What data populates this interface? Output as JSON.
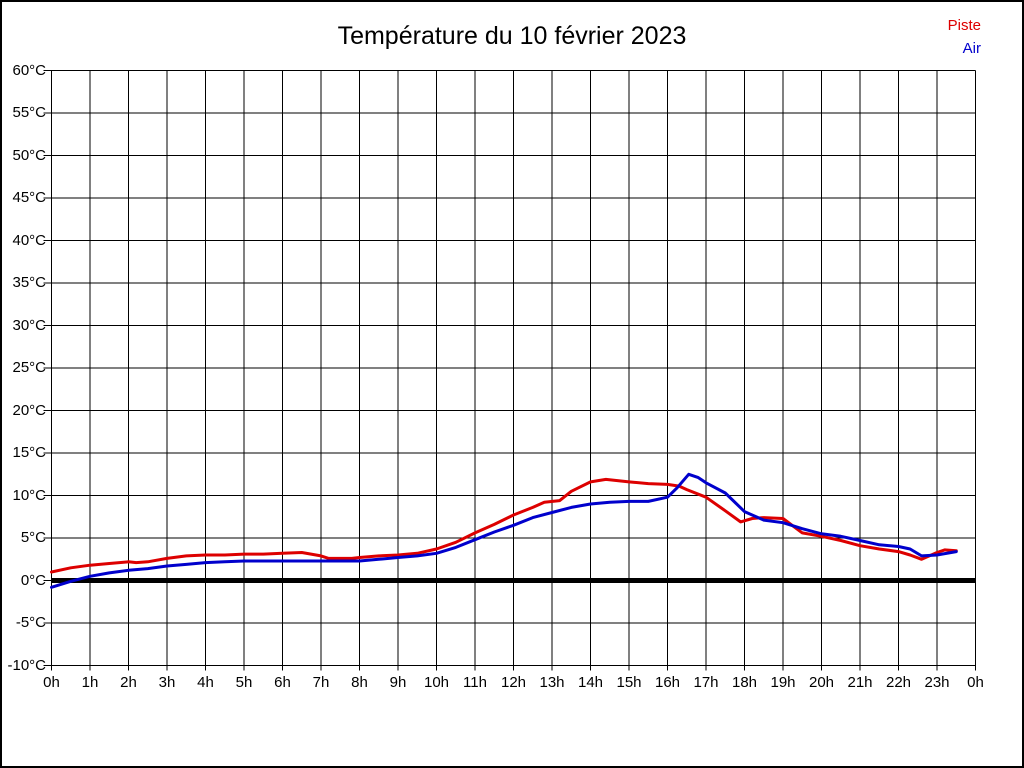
{
  "title": "Température du 10 février 2023",
  "legend": [
    {
      "label": "Piste",
      "color": "#dd0000"
    },
    {
      "label": "Air",
      "color": "#0000cc"
    }
  ],
  "chart_data": {
    "type": "line",
    "title": "Température du 10 février 2023",
    "xlabel": "",
    "ylabel": "",
    "xlim": [
      0,
      24
    ],
    "ylim": [
      -10,
      60
    ],
    "grid": true,
    "background": "#ffffff",
    "grid_color": "#000000",
    "legend_position": "top-right",
    "zero_line": {
      "value": 0,
      "color": "#000000",
      "width": 5
    },
    "x_axis": {
      "values": [
        0,
        1,
        2,
        3,
        4,
        5,
        6,
        7,
        8,
        9,
        10,
        11,
        12,
        13,
        14,
        15,
        16,
        17,
        18,
        19,
        20,
        21,
        22,
        23,
        24
      ],
      "labels": [
        "0h",
        "1h",
        "2h",
        "3h",
        "4h",
        "5h",
        "6h",
        "7h",
        "8h",
        "9h",
        "10h",
        "11h",
        "12h",
        "13h",
        "14h",
        "15h",
        "16h",
        "17h",
        "18h",
        "19h",
        "20h",
        "21h",
        "22h",
        "23h",
        "0h"
      ]
    },
    "y_axis": {
      "values": [
        60,
        55,
        50,
        45,
        40,
        35,
        30,
        25,
        20,
        15,
        10,
        5,
        0,
        -5,
        -10
      ],
      "labels": [
        "60°C",
        "55°C",
        "50°C",
        "45°C",
        "40°C",
        "35°C",
        "30°C",
        "25°C",
        "20°C",
        "15°C",
        "10°C",
        "5°C",
        "0°C",
        "-5°C",
        "-10°C"
      ]
    },
    "series": [
      {
        "name": "Piste",
        "color": "#dd0000",
        "points": [
          [
            0,
            1.0
          ],
          [
            0.5,
            1.5
          ],
          [
            1,
            1.8
          ],
          [
            1.5,
            2.0
          ],
          [
            2,
            2.2
          ],
          [
            2.2,
            2.1
          ],
          [
            2.5,
            2.2
          ],
          [
            3,
            2.6
          ],
          [
            3.5,
            2.9
          ],
          [
            4,
            3.0
          ],
          [
            4.5,
            3.0
          ],
          [
            5,
            3.1
          ],
          [
            5.5,
            3.1
          ],
          [
            6,
            3.2
          ],
          [
            6.5,
            3.3
          ],
          [
            7,
            2.9
          ],
          [
            7.2,
            2.6
          ],
          [
            7.8,
            2.6
          ],
          [
            8,
            2.7
          ],
          [
            8.5,
            2.9
          ],
          [
            9,
            3.0
          ],
          [
            9.5,
            3.2
          ],
          [
            10,
            3.7
          ],
          [
            10.5,
            4.5
          ],
          [
            11,
            5.6
          ],
          [
            11.5,
            6.6
          ],
          [
            12,
            7.7
          ],
          [
            12.5,
            8.6
          ],
          [
            12.8,
            9.2
          ],
          [
            13.2,
            9.4
          ],
          [
            13.5,
            10.5
          ],
          [
            14,
            11.6
          ],
          [
            14.4,
            11.9
          ],
          [
            15,
            11.6
          ],
          [
            15.5,
            11.4
          ],
          [
            16,
            11.3
          ],
          [
            16.3,
            11.1
          ],
          [
            16.5,
            10.7
          ],
          [
            17,
            9.8
          ],
          [
            17.5,
            8.2
          ],
          [
            17.9,
            6.9
          ],
          [
            18.2,
            7.3
          ],
          [
            18.5,
            7.4
          ],
          [
            19,
            7.3
          ],
          [
            19.5,
            5.6
          ],
          [
            20,
            5.2
          ],
          [
            20.5,
            4.7
          ],
          [
            21,
            4.1
          ],
          [
            21.5,
            3.7
          ],
          [
            22,
            3.4
          ],
          [
            22.3,
            3.0
          ],
          [
            22.6,
            2.5
          ],
          [
            23,
            3.3
          ],
          [
            23.2,
            3.6
          ],
          [
            23.5,
            3.5
          ]
        ]
      },
      {
        "name": "Air",
        "color": "#0000cc",
        "points": [
          [
            0,
            -0.8
          ],
          [
            0.5,
            -0.1
          ],
          [
            1,
            0.5
          ],
          [
            1.5,
            0.9
          ],
          [
            2,
            1.2
          ],
          [
            2.5,
            1.4
          ],
          [
            3,
            1.7
          ],
          [
            3.5,
            1.9
          ],
          [
            4,
            2.1
          ],
          [
            4.5,
            2.2
          ],
          [
            5,
            2.3
          ],
          [
            5.5,
            2.3
          ],
          [
            6,
            2.3
          ],
          [
            6.5,
            2.3
          ],
          [
            7,
            2.3
          ],
          [
            7.5,
            2.3
          ],
          [
            8,
            2.3
          ],
          [
            8.5,
            2.5
          ],
          [
            9,
            2.7
          ],
          [
            9.5,
            2.9
          ],
          [
            10,
            3.2
          ],
          [
            10.5,
            3.9
          ],
          [
            11,
            4.8
          ],
          [
            11.5,
            5.7
          ],
          [
            12,
            6.5
          ],
          [
            12.5,
            7.4
          ],
          [
            13,
            8.0
          ],
          [
            13.5,
            8.6
          ],
          [
            14,
            9.0
          ],
          [
            14.5,
            9.2
          ],
          [
            15,
            9.3
          ],
          [
            15.5,
            9.3
          ],
          [
            16,
            9.8
          ],
          [
            16.25,
            10.9
          ],
          [
            16.55,
            12.5
          ],
          [
            16.8,
            12.1
          ],
          [
            17,
            11.5
          ],
          [
            17.5,
            10.3
          ],
          [
            18,
            8.1
          ],
          [
            18.5,
            7.1
          ],
          [
            19,
            6.8
          ],
          [
            19.5,
            6.1
          ],
          [
            20,
            5.5
          ],
          [
            20.5,
            5.2
          ],
          [
            21,
            4.7
          ],
          [
            21.5,
            4.2
          ],
          [
            22,
            4.0
          ],
          [
            22.3,
            3.7
          ],
          [
            22.6,
            2.9
          ],
          [
            23,
            3.0
          ],
          [
            23.5,
            3.4
          ]
        ]
      }
    ]
  }
}
